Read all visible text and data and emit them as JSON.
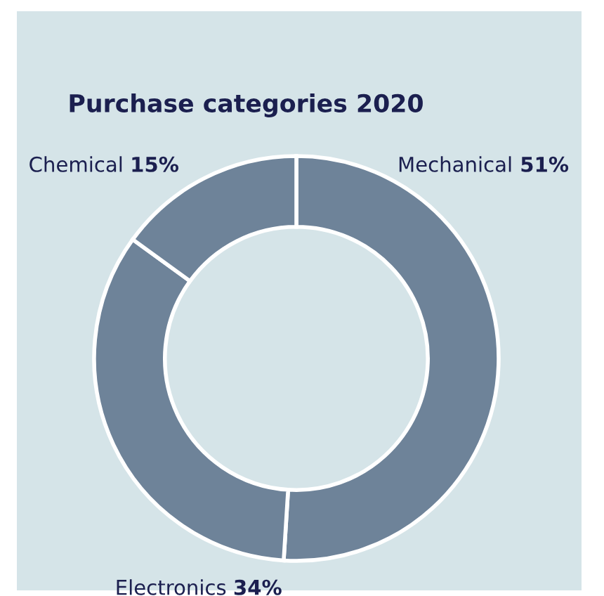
{
  "chart_data": {
    "type": "donut",
    "title": "Purchase categories 2020",
    "categories": [
      "Mechanical",
      "Electronics",
      "Chemical"
    ],
    "values": [
      51,
      34,
      15
    ],
    "value_labels": [
      "51%",
      "34%",
      "15%"
    ],
    "colors": [
      "#6e8399",
      "#6e8399",
      "#6e8399"
    ],
    "legend": false
  }
}
